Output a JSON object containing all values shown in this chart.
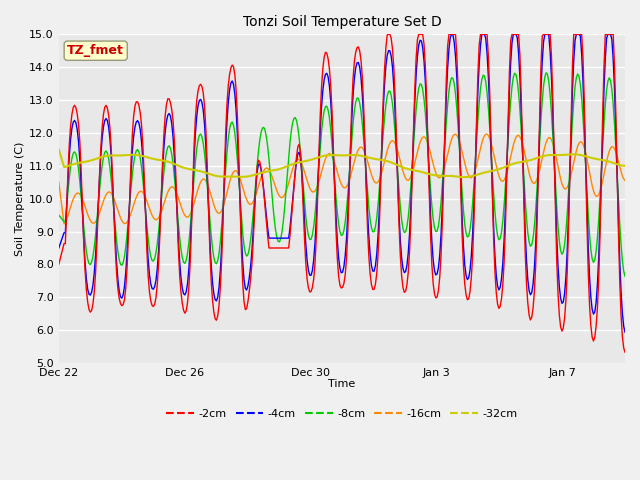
{
  "title": "Tonzi Soil Temperature Set D",
  "xlabel": "Time",
  "ylabel": "Soil Temperature (C)",
  "ylim": [
    5.0,
    15.0
  ],
  "yticks": [
    5.0,
    6.0,
    7.0,
    8.0,
    9.0,
    10.0,
    11.0,
    12.0,
    13.0,
    14.0,
    15.0
  ],
  "series_colors": {
    "-2cm": "#ff0000",
    "-4cm": "#0000ff",
    "-8cm": "#00cc00",
    "-16cm": "#ff8800",
    "-32cm": "#cccc00"
  },
  "legend_labels": [
    "-2cm",
    "-4cm",
    "-8cm",
    "-16cm",
    "-32cm"
  ],
  "annotation_text": "TZ_fmet",
  "annotation_color": "#cc0000",
  "annotation_bg": "#ffffcc",
  "fig_facecolor": "#f0f0f0",
  "plot_bg_color": "#e8e8e8",
  "grid_color": "#ffffff",
  "xtick_labels": [
    "Dec 22",
    "Dec 26",
    "Dec 30",
    "Jan 3",
    "Jan 7"
  ],
  "xtick_days": [
    0,
    4,
    8,
    12,
    16
  ]
}
